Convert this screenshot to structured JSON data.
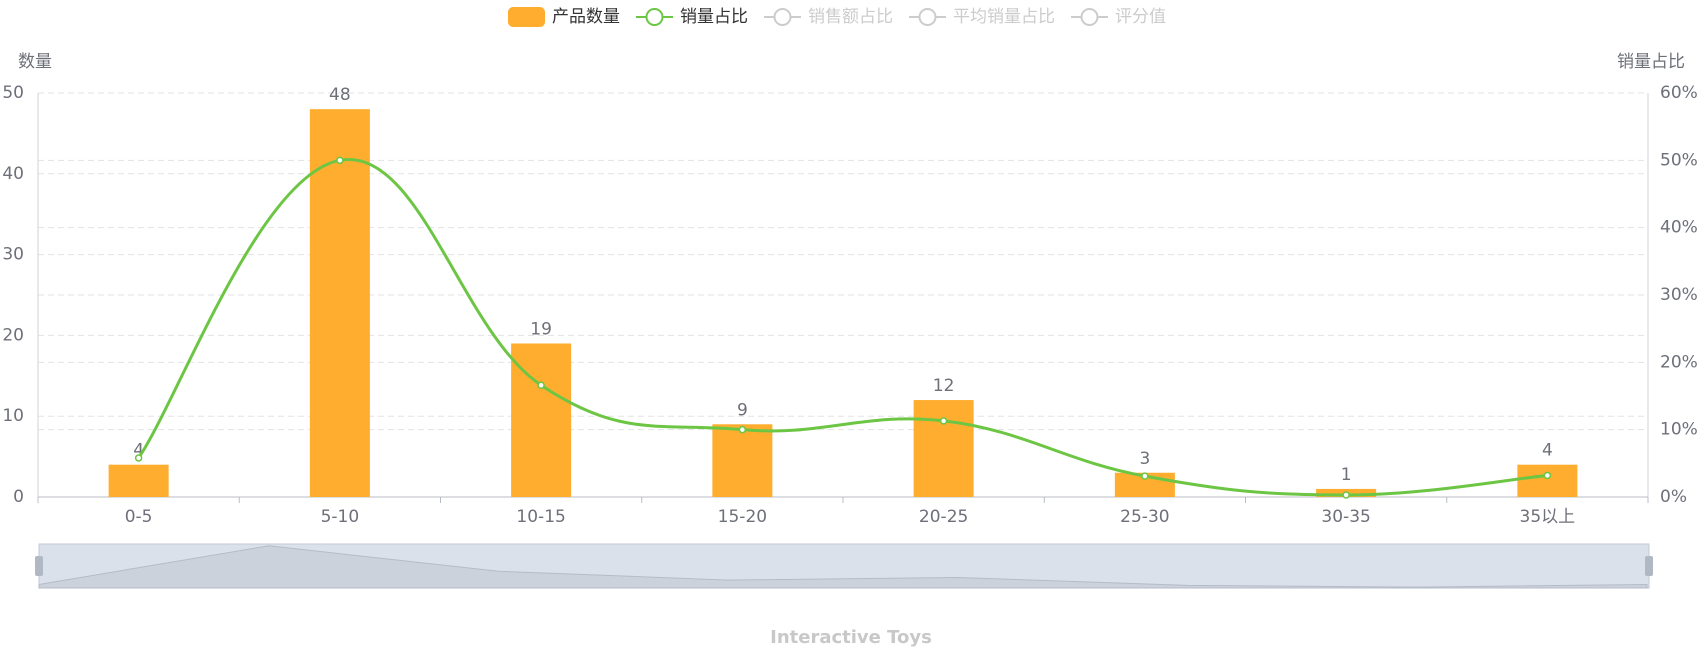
{
  "chart_data": {
    "type": "bar-line",
    "title": "Interactive Toys",
    "y_label": "数量",
    "y2_label": "销量占比",
    "categories": [
      "0-5",
      "5-10",
      "10-15",
      "15-20",
      "20-25",
      "25-30",
      "30-35",
      "35以上"
    ],
    "series": [
      {
        "name": "产品数量",
        "type": "bar",
        "color": "#ffad2e",
        "values": [
          4,
          48,
          19,
          9,
          12,
          3,
          1,
          4
        ]
      },
      {
        "name": "销量占比",
        "type": "line",
        "smooth": true,
        "axis": "y2",
        "color": "#6cc644",
        "values": [
          5.8,
          50,
          16.6,
          10,
          11.3,
          3.1,
          0.3,
          3.2
        ]
      },
      {
        "name": "销售额占比",
        "type": "line",
        "visible": false,
        "color": "#cccccc"
      },
      {
        "name": "平均销量占比",
        "type": "line",
        "visible": false,
        "color": "#cccccc"
      },
      {
        "name": "评分值",
        "type": "line",
        "visible": false,
        "color": "#cccccc"
      }
    ],
    "ylim": [
      0,
      50
    ],
    "yticks": [
      0,
      10,
      20,
      30,
      40,
      50
    ],
    "y2lim": [
      0,
      60
    ],
    "y2ticks": [
      {
        "value": 0,
        "label": "0%"
      },
      {
        "value": 10,
        "label": "10%"
      },
      {
        "value": 20,
        "label": "20%"
      },
      {
        "value": 30,
        "label": "30%"
      },
      {
        "value": 40,
        "label": "40%"
      },
      {
        "value": 50,
        "label": "50%"
      },
      {
        "value": 60,
        "label": "60%"
      }
    ],
    "grid": true,
    "data_labels": true,
    "legend": "top"
  }
}
